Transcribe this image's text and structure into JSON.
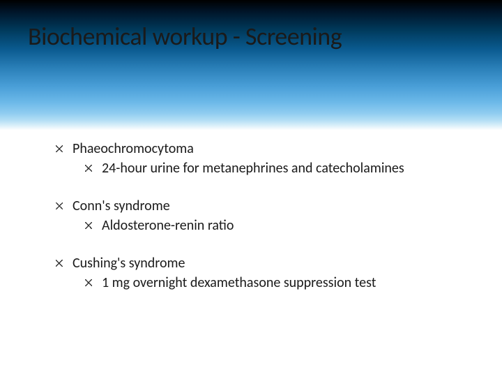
{
  "slide": {
    "title": "Biochemical workup - Screening",
    "title_fontsize": 36,
    "title_color": "#1a1a1a",
    "body_fontsize": 20,
    "body_color": "#1a1a1a",
    "background_gradient_top": "#000000",
    "background_gradient_mid": "#4a9fd8",
    "background_gradient_bottom": "#ffffff",
    "bullet_glyph": "asterisk-star",
    "bullet_color": "#333333",
    "items": [
      {
        "label": "Phaeochromocytoma",
        "children": [
          {
            "label": "24-hour urine for metanephrines and catecholamines"
          }
        ]
      },
      {
        "label": "Conn's syndrome",
        "children": [
          {
            "label": "Aldosterone-renin ratio"
          }
        ]
      },
      {
        "label": "Cushing's syndrome",
        "children": [
          {
            "label": "1 mg overnight dexamethasone suppression test"
          }
        ]
      }
    ]
  }
}
